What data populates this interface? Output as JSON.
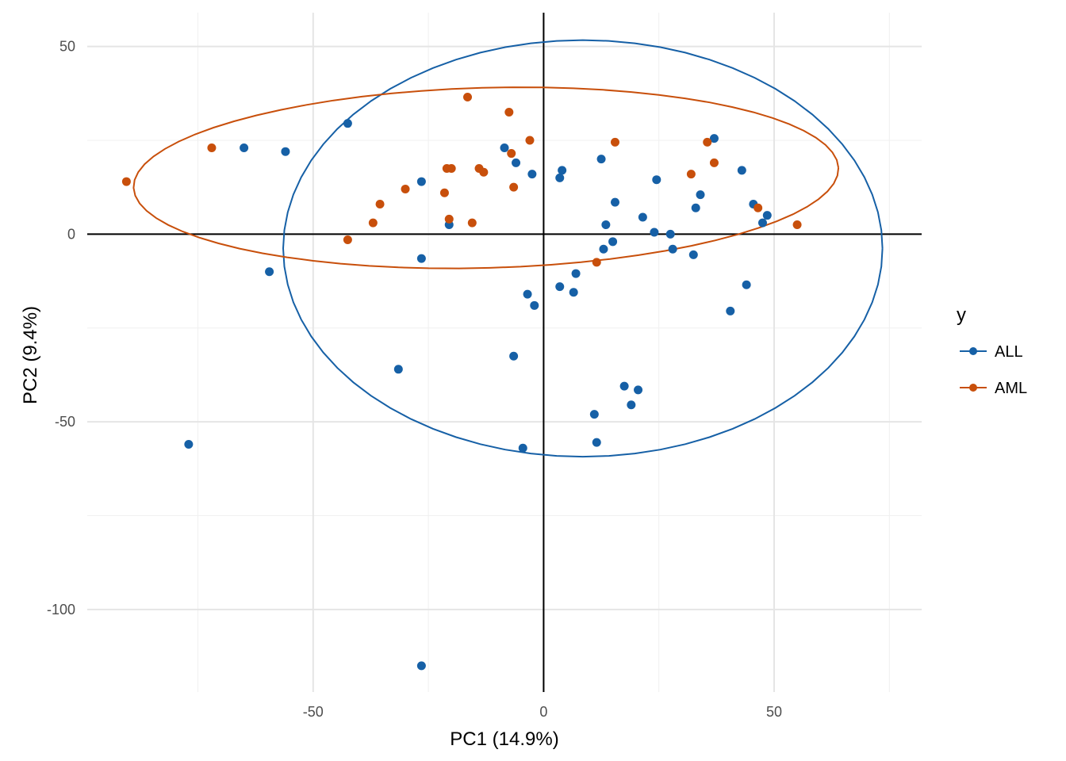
{
  "chart_data": {
    "type": "scatter",
    "title": "",
    "xlabel": "PC1 (14.9%)",
    "ylabel": "PC2 (9.4%)",
    "xlim": [
      -99,
      82
    ],
    "ylim": [
      -122,
      59
    ],
    "x_ticks": [
      -50,
      0,
      50
    ],
    "y_ticks": [
      50,
      0,
      -50,
      -100
    ],
    "x_tick_labels": [
      "-50",
      "0",
      "50"
    ],
    "y_tick_labels": [
      "50",
      "0",
      "-50",
      "-100"
    ],
    "grid": true,
    "reference_lines": {
      "x": 0,
      "y": 0
    },
    "legend": {
      "title": "y",
      "position": "right",
      "entries": [
        {
          "label": "ALL",
          "color": "#1660a6"
        },
        {
          "label": "AML",
          "color": "#c84f0b"
        }
      ]
    },
    "series": [
      {
        "name": "ALL",
        "color": "#1660a6",
        "points": [
          [
            -65,
            23
          ],
          [
            -56,
            22
          ],
          [
            -42.5,
            29.5
          ],
          [
            -59.5,
            -10
          ],
          [
            -77,
            -56
          ],
          [
            -26.5,
            14
          ],
          [
            -26.5,
            -6.5
          ],
          [
            -20.5,
            2.5
          ],
          [
            -31.5,
            -36
          ],
          [
            -26.5,
            -115
          ],
          [
            -8.5,
            23
          ],
          [
            -6,
            19
          ],
          [
            -2.5,
            16
          ],
          [
            3.5,
            15
          ],
          [
            4,
            17
          ],
          [
            -3.5,
            -16
          ],
          [
            -2,
            -19
          ],
          [
            -6.5,
            -32.5
          ],
          [
            -4.5,
            -57
          ],
          [
            3.5,
            -14
          ],
          [
            6.5,
            -15.5
          ],
          [
            7,
            -10.5
          ],
          [
            12.5,
            20
          ],
          [
            15.5,
            8.5
          ],
          [
            13.5,
            2.5
          ],
          [
            15,
            -2
          ],
          [
            13,
            -4
          ],
          [
            11,
            -48
          ],
          [
            11.5,
            -55.5
          ],
          [
            17.5,
            -40.5
          ],
          [
            20.5,
            -41.5
          ],
          [
            19,
            -45.5
          ],
          [
            21.5,
            4.5
          ],
          [
            24.5,
            14.5
          ],
          [
            24,
            0.5
          ],
          [
            27.5,
            0
          ],
          [
            28,
            -4
          ],
          [
            32.5,
            -5.5
          ],
          [
            33,
            7
          ],
          [
            34,
            10.5
          ],
          [
            37,
            25.5
          ],
          [
            40.5,
            -20.5
          ],
          [
            43,
            17
          ],
          [
            44,
            -13.5
          ],
          [
            45.5,
            8
          ],
          [
            47.5,
            3
          ],
          [
            48.5,
            5
          ]
        ]
      },
      {
        "name": "AML",
        "color": "#c84f0b",
        "points": [
          [
            -90.5,
            14
          ],
          [
            -72,
            23
          ],
          [
            -42.5,
            -1.5
          ],
          [
            -37,
            3
          ],
          [
            -35.5,
            8
          ],
          [
            -30,
            12
          ],
          [
            -21.5,
            11
          ],
          [
            -21,
            17.5
          ],
          [
            -20,
            17.5
          ],
          [
            -20.5,
            4
          ],
          [
            -15.5,
            3
          ],
          [
            -16.5,
            36.5
          ],
          [
            -14,
            17.5
          ],
          [
            -13,
            16.5
          ],
          [
            -7.5,
            32.5
          ],
          [
            -7,
            21.5
          ],
          [
            -6.5,
            12.5
          ],
          [
            -3,
            25
          ],
          [
            11.5,
            -7.5
          ],
          [
            15.5,
            24.5
          ],
          [
            32,
            16
          ],
          [
            35.5,
            24.5
          ],
          [
            37,
            19
          ],
          [
            46.5,
            7
          ],
          [
            55,
            2.5
          ]
        ]
      }
    ],
    "ellipses": [
      {
        "series": "ALL",
        "center": [
          8.5,
          -3.8
        ],
        "radius_x": 65,
        "radius_y": 55.5,
        "rotation_deg": 0
      },
      {
        "series": "AML",
        "center": [
          -12.5,
          15
        ],
        "radius_x": 76.5,
        "radius_y": 24,
        "rotation_deg": 2
      }
    ]
  }
}
